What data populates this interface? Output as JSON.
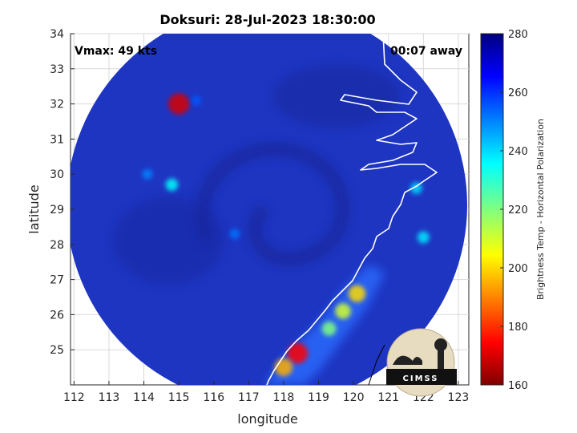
{
  "figure": {
    "title": "Doksuri: 28-Jul-2023 18:30:00",
    "vmax_label": "Vmax: 49 kts",
    "time_offset_label": "00:07 away",
    "xlabel": "longitude",
    "ylabel": "latitude",
    "logo_text": "CIMSS"
  },
  "colors": {
    "disk_background": "#1a2fb8",
    "coastline": "#ffffff",
    "grid": "#d9d9d9"
  },
  "chart_data": {
    "type": "heatmap",
    "title": "Doksuri: 28-Jul-2023 18:30:00",
    "xlabel": "longitude",
    "ylabel": "latitude",
    "xlim": [
      111.9,
      123.3
    ],
    "ylim": [
      24,
      34
    ],
    "x_ticks": [
      "112",
      "113",
      "114",
      "115",
      "116",
      "117",
      "118",
      "119",
      "120",
      "121",
      "122",
      "123"
    ],
    "y_ticks": [
      "25",
      "26",
      "27",
      "28",
      "29",
      "30",
      "31",
      "32",
      "33",
      "34"
    ],
    "grid": true,
    "colorbar": {
      "label": "Brightness Temp - Horizontal Polarization",
      "range": [
        160,
        280
      ],
      "ticks": [
        "160",
        "180",
        "200",
        "220",
        "240",
        "260",
        "280"
      ],
      "colormap": "jet"
    },
    "warm_features": [
      {
        "lon": 115.0,
        "lat": 32.0,
        "value": 170
      },
      {
        "lon": 115.5,
        "lat": 32.1,
        "value": 255
      },
      {
        "lon": 114.1,
        "lat": 30.0,
        "value": 250
      },
      {
        "lon": 114.8,
        "lat": 29.7,
        "value": 235
      },
      {
        "lon": 116.6,
        "lat": 28.3,
        "value": 252
      },
      {
        "lon": 120.1,
        "lat": 26.6,
        "value": 200
      },
      {
        "lon": 119.7,
        "lat": 26.1,
        "value": 210
      },
      {
        "lon": 119.3,
        "lat": 25.6,
        "value": 220
      },
      {
        "lon": 118.4,
        "lat": 24.9,
        "value": 175
      },
      {
        "lon": 118.0,
        "lat": 24.5,
        "value": 195
      },
      {
        "lon": 121.8,
        "lat": 29.6,
        "value": 240
      },
      {
        "lon": 122.0,
        "lat": 28.2,
        "value": 238
      }
    ]
  }
}
